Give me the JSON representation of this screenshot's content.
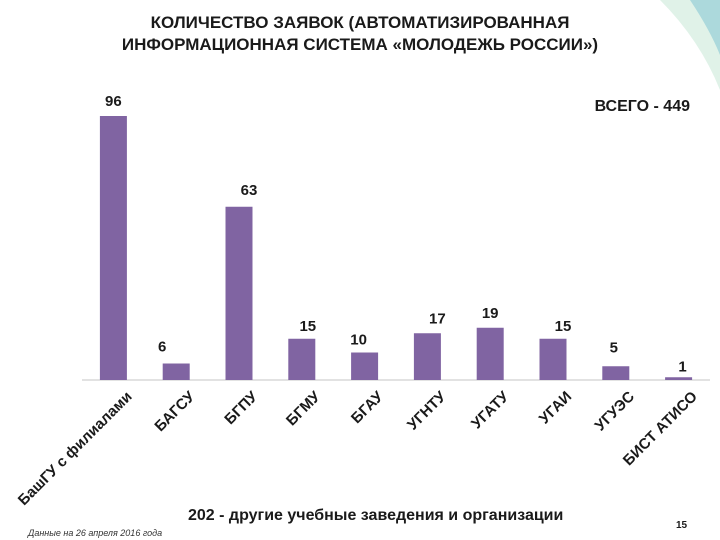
{
  "header": {
    "title_line1": "КОЛИЧЕСТВО ЗАЯВОК (АВТОМАТИЗИРОВАННАЯ",
    "title_line2": "ИНФОРМАЦИОННАЯ СИСТЕМА «МОЛОДЕЖЬ РОССИИ»)"
  },
  "total_label": "ВСЕГО - 449",
  "bottom_note": "202 - другие учебные заведения и организации",
  "footnote": "Данные на 26 апреля 2016 года",
  "slide_number": "15",
  "colors": {
    "bar": "#8064a2",
    "axis": "#d9d9d9",
    "accent": "#4bacc6"
  },
  "chart_data": {
    "type": "bar",
    "categories": [
      "БашГУ с филиалами",
      "БАГСУ",
      "БГПУ",
      "БГМУ",
      "БГАУ",
      "УГНТУ",
      "УГАТУ",
      "УГАИ",
      "УГУЭС",
      "БИСТ АТИСО"
    ],
    "values": [
      96,
      6,
      63,
      15,
      10,
      17,
      19,
      15,
      5,
      1
    ],
    "data_labels": [
      "96",
      "6",
      "63",
      "15",
      "10",
      "17",
      "19",
      "15",
      "5",
      "1"
    ],
    "ylim": [
      0,
      100
    ],
    "grid": false,
    "legend": "none"
  }
}
